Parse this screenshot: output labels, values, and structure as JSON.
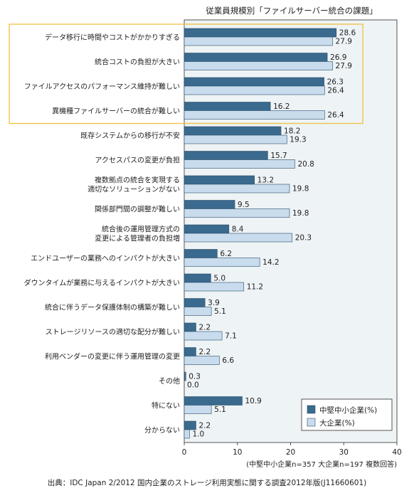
{
  "chart_data": {
    "type": "bar",
    "orientation": "horizontal",
    "title": "従業員規模別「ファイルサーバー統合の課題」",
    "categories": [
      [
        "データ移行に時間やコストがかかりすぎる"
      ],
      [
        "統合コストの負担が大きい"
      ],
      [
        "ファイルアクセスのパフォーマンス維持が難しい"
      ],
      [
        "異機種ファイルサーバーの統合が難しい"
      ],
      [
        "既存システムからの移行が不安"
      ],
      [
        "アクセスパスの変更が負担"
      ],
      [
        "複数拠点の統合を実現する",
        "適切なソリューションがない"
      ],
      [
        "関係部門間の調整が難しい"
      ],
      [
        "統合後の運用管理方式の",
        "変更による管理者の負担増"
      ],
      [
        "エンドユーザーの業務へのインパクトが大きい"
      ],
      [
        "ダウンタイムが業務に与えるインパクトが大きい"
      ],
      [
        "統合に伴うデータ保護体制の構築が難しい"
      ],
      [
        "ストレージリソースの適切な配分が難しい"
      ],
      [
        "利用ベンダーの変更に伴う運用管理の変更"
      ],
      [
        "その他"
      ],
      [
        "特にない"
      ],
      [
        "分からない"
      ]
    ],
    "series": [
      {
        "name": "中堅中小企業(%)",
        "color": "#3a6a8e",
        "values": [
          28.6,
          26.9,
          26.3,
          16.2,
          18.2,
          15.7,
          13.2,
          9.5,
          8.4,
          6.2,
          5.0,
          3.9,
          2.2,
          2.2,
          0.3,
          10.9,
          2.2
        ]
      },
      {
        "name": "大企業(%)",
        "color": "#c8dcee",
        "values": [
          27.9,
          27.9,
          26.4,
          26.4,
          19.3,
          20.8,
          19.8,
          19.8,
          20.3,
          14.2,
          11.2,
          5.1,
          7.1,
          6.6,
          0.0,
          5.1,
          1.0
        ]
      }
    ],
    "value_labels": [
      [
        "28.6",
        "27.9"
      ],
      [
        "26.9",
        "27.9"
      ],
      [
        "26.3",
        "26.4"
      ],
      [
        "16.2",
        "26.4"
      ],
      [
        "18.2",
        "19.3"
      ],
      [
        "15.7",
        "20.8"
      ],
      [
        "13.2",
        "19.8"
      ],
      [
        "9.5",
        "19.8"
      ],
      [
        "8.4",
        "20.3"
      ],
      [
        "6.2",
        "14.2"
      ],
      [
        "5.0",
        "11.2"
      ],
      [
        "3.9",
        "5.1"
      ],
      [
        "2.2",
        "7.1"
      ],
      [
        "2.2",
        "6.6"
      ],
      [
        "0.3",
        "0.0"
      ],
      [
        "10.9",
        "5.1"
      ],
      [
        "2.2",
        "1.0"
      ]
    ],
    "xlim": [
      0,
      40
    ],
    "xticks": [
      0,
      10,
      20,
      30,
      40
    ],
    "highlighted_categories": [
      0,
      3
    ],
    "legend_position": "bottom-right",
    "note": "(中堅中小企業n=357 大企業n=197 複数回答)",
    "colors": {
      "plot_bg": "#eef3f5",
      "highlight_border": "#f0c040"
    }
  },
  "source": "出典：IDC Japan 2/2012 国内企業のストレージ利用実態に関する調査2012年版(J11660601)"
}
